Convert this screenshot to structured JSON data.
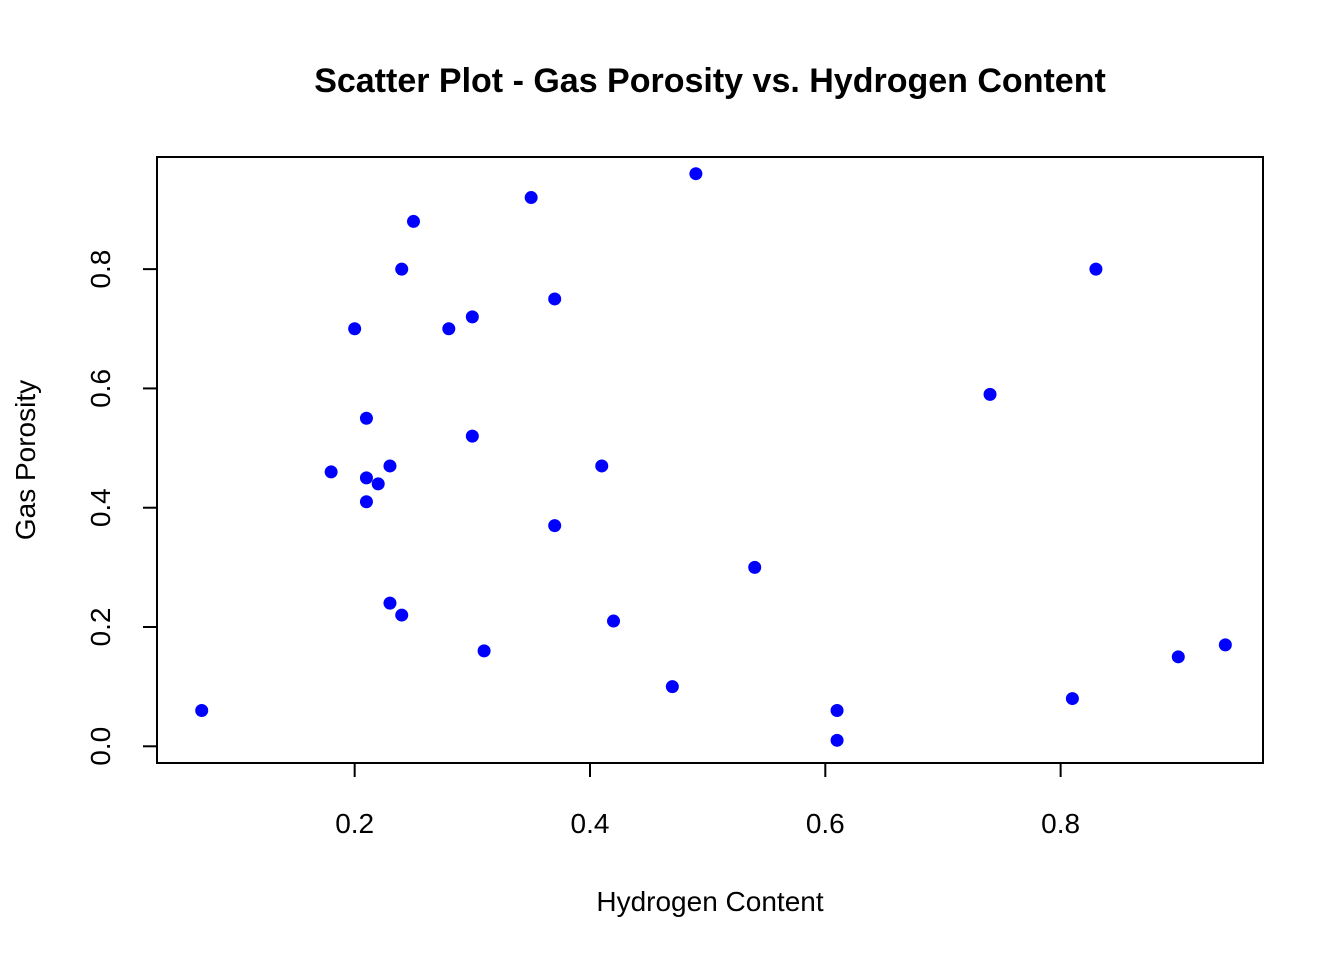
{
  "chart_data": {
    "type": "scatter",
    "title": "Scatter Plot - Gas Porosity vs. Hydrogen Content",
    "xlabel": "Hydrogen Content",
    "ylabel": "Gas Porosity",
    "xlim": [
      0.032,
      0.972
    ],
    "ylim": [
      -0.028,
      0.988
    ],
    "x_ticks": [
      0.2,
      0.4,
      0.6,
      0.8
    ],
    "x_tick_labels": [
      "0.2",
      "0.4",
      "0.6",
      "0.8"
    ],
    "y_ticks": [
      0.0,
      0.2,
      0.4,
      0.6,
      0.8
    ],
    "y_tick_labels": [
      "0.0",
      "0.2",
      "0.4",
      "0.6",
      "0.8"
    ],
    "grid": false,
    "point_color": "#0000FF",
    "series": [
      {
        "x": [
          0.07,
          0.18,
          0.2,
          0.21,
          0.21,
          0.21,
          0.22,
          0.23,
          0.23,
          0.24,
          0.24,
          0.25,
          0.28,
          0.3,
          0.3,
          0.31,
          0.35,
          0.37,
          0.37,
          0.41,
          0.42,
          0.47,
          0.49,
          0.54,
          0.61,
          0.61,
          0.74,
          0.81,
          0.83,
          0.9,
          0.94
        ],
        "y": [
          0.06,
          0.46,
          0.7,
          0.55,
          0.45,
          0.41,
          0.44,
          0.47,
          0.24,
          0.8,
          0.22,
          0.88,
          0.7,
          0.72,
          0.52,
          0.16,
          0.92,
          0.75,
          0.37,
          0.47,
          0.21,
          0.1,
          0.96,
          0.3,
          0.06,
          0.01,
          0.59,
          0.08,
          0.8,
          0.15,
          0.17
        ]
      }
    ]
  }
}
